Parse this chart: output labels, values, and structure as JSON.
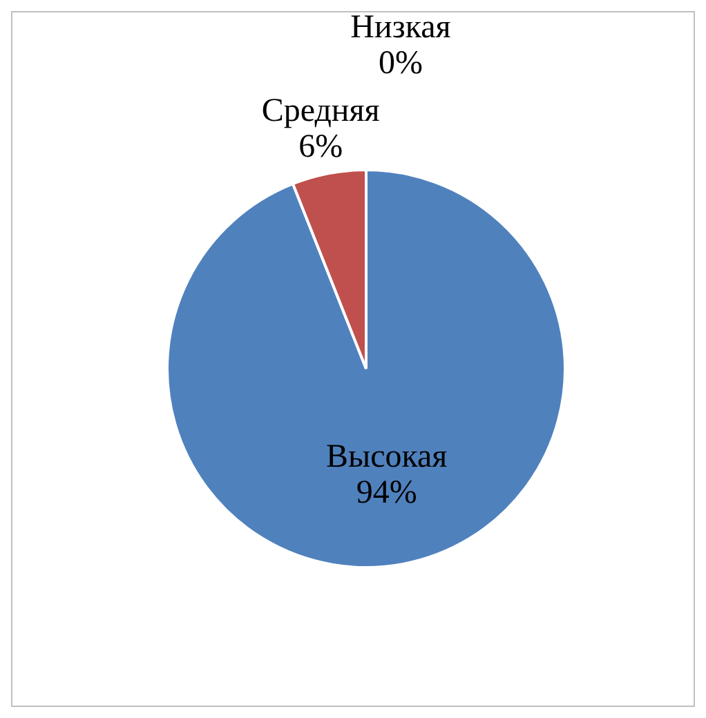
{
  "chart_data": {
    "type": "pie",
    "categories": [
      "Высокая",
      "Средняя",
      "Низкая"
    ],
    "values": [
      94,
      6,
      0
    ],
    "value_labels": [
      "94%",
      "6%",
      "0%"
    ],
    "colors": [
      "#4f81bd",
      "#c0504d",
      "#9bbb59"
    ],
    "legend": false
  }
}
